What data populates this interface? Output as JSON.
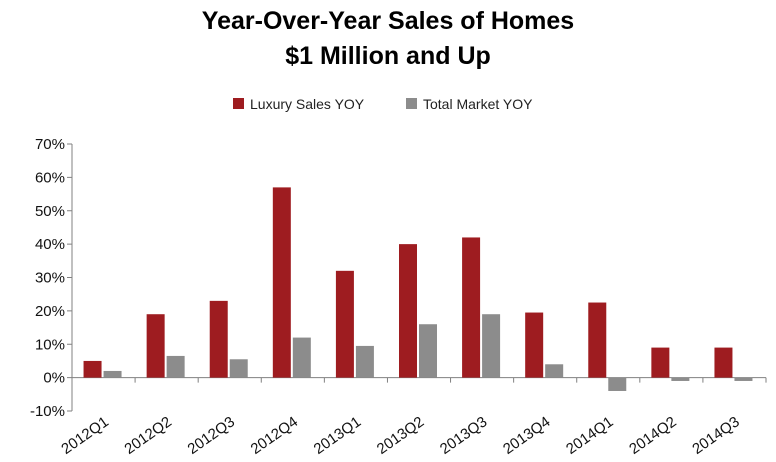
{
  "chart_data": {
    "type": "bar",
    "title": [
      "Year-Over-Year  Sales of Homes",
      "$1 Million  and Up"
    ],
    "xlabel": "",
    "ylabel": "",
    "categories": [
      "2012Q1",
      "2012Q2",
      "2012Q3",
      "2012Q4",
      "2013Q1",
      "2013Q2",
      "2013Q3",
      "2013Q4",
      "2014Q1",
      "2014Q2",
      "2014Q3"
    ],
    "series": [
      {
        "name": "Luxury Sales YOY",
        "color": "#9e1c20",
        "values": [
          5,
          19,
          23,
          57,
          32,
          40,
          42,
          19.5,
          22.5,
          9,
          9
        ]
      },
      {
        "name": "Total Market YOY",
        "color": "#8c8c8c",
        "values": [
          2,
          6.5,
          5.5,
          12,
          9.5,
          16,
          19,
          4,
          -4,
          -1,
          -1
        ]
      }
    ],
    "ylim": [
      -10,
      70
    ],
    "yticks": [
      -10,
      0,
      10,
      20,
      30,
      40,
      50,
      60,
      70
    ],
    "ytick_labels": [
      "-10%",
      "0%",
      "10%",
      "20%",
      "30%",
      "40%",
      "50%",
      "60%",
      "70%"
    ],
    "grid": false,
    "legend_position": "top-center"
  }
}
